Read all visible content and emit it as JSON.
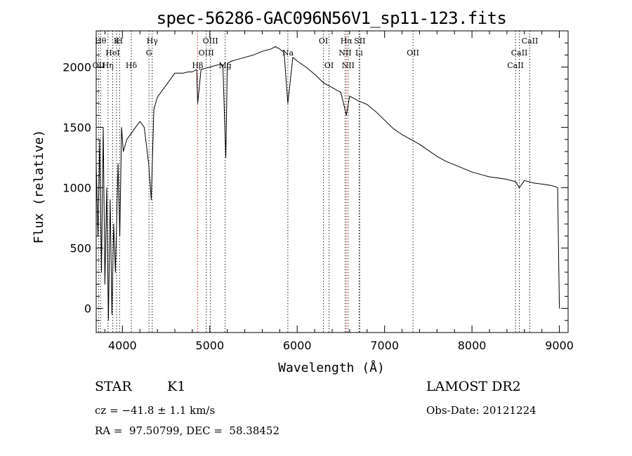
{
  "chart_data": {
    "type": "line",
    "title": "spec-56286-GAC096N56V1_sp11-123.fits",
    "xlabel": "Wavelength (Å)",
    "ylabel": "Flux (relative)",
    "xlim": [
      3700,
      9100
    ],
    "ylim": [
      -200,
      2300
    ],
    "x_ticks": [
      4000,
      5000,
      6000,
      7000,
      8000,
      9000
    ],
    "y_ticks": [
      0,
      500,
      1000,
      1500,
      2000
    ],
    "grid": false,
    "series": [
      {
        "color": "#000000",
        "x": [
          3700,
          3720,
          3740,
          3760,
          3780,
          3800,
          3820,
          3840,
          3860,
          3880,
          3900,
          3920,
          3950,
          3970,
          3990,
          4010,
          4050,
          4100,
          4150,
          4200,
          4250,
          4300,
          4330,
          4360,
          4400,
          4450,
          4500,
          4550,
          4600,
          4650,
          4700,
          4750,
          4800,
          4850,
          4861,
          4900,
          4950,
          5000,
          5050,
          5100,
          5150,
          5170,
          5183,
          5200,
          5250,
          5300,
          5400,
          5500,
          5600,
          5700,
          5750,
          5800,
          5850,
          5893,
          5950,
          6000,
          6100,
          6200,
          6300,
          6400,
          6500,
          6563,
          6600,
          6700,
          6800,
          6900,
          7000,
          7100,
          7200,
          7300,
          7400,
          7500,
          7600,
          7700,
          7800,
          7900,
          8000,
          8100,
          8200,
          8300,
          8400,
          8500,
          8542,
          8600,
          8700,
          8800,
          8900,
          8950,
          8980,
          9000
        ],
        "y": [
          1200,
          600,
          1400,
          300,
          1500,
          200,
          1000,
          -100,
          900,
          -50,
          700,
          300,
          1200,
          600,
          1500,
          1300,
          1400,
          1450,
          1500,
          1550,
          1500,
          1200,
          900,
          1650,
          1750,
          1800,
          1850,
          1900,
          1950,
          1950,
          1950,
          1960,
          1960,
          1980,
          1700,
          1980,
          1990,
          2000,
          2010,
          2020,
          2020,
          1550,
          1250,
          2030,
          2050,
          2060,
          2080,
          2100,
          2130,
          2150,
          2170,
          2150,
          2120,
          1700,
          2080,
          2050,
          2000,
          1940,
          1870,
          1830,
          1790,
          1600,
          1760,
          1720,
          1690,
          1630,
          1560,
          1490,
          1440,
          1400,
          1360,
          1310,
          1260,
          1220,
          1190,
          1160,
          1130,
          1110,
          1090,
          1080,
          1070,
          1050,
          1000,
          1060,
          1040,
          1030,
          1020,
          1010,
          1000,
          0
        ]
      }
    ],
    "lines": [
      {
        "wl": 3727,
        "label": "OII",
        "row": 2,
        "color": "#000000"
      },
      {
        "wl": 3750,
        "label": "Hθ",
        "row": 0,
        "color": "#000000"
      },
      {
        "wl": 3835,
        "label": "Hη",
        "row": 2,
        "color": "#000000"
      },
      {
        "wl": 3889,
        "label": "HeI",
        "row": 1,
        "color": "#000000"
      },
      {
        "wl": 3933,
        "label": "K",
        "row": 0,
        "color": "#000000"
      },
      {
        "wl": 3968,
        "label": "H",
        "row": 0,
        "color": "#000000"
      },
      {
        "wl": 4102,
        "label": "Hδ",
        "row": 2,
        "color": "#000000"
      },
      {
        "wl": 4304,
        "label": "G",
        "row": 1,
        "color": "#000000"
      },
      {
        "wl": 4341,
        "label": "Hγ",
        "row": 0,
        "color": "#000000"
      },
      {
        "wl": 4861,
        "label": "Hβ",
        "row": 2,
        "color": "#cc0000"
      },
      {
        "wl": 4959,
        "label": "OIII",
        "row": 1,
        "color": "#000000"
      },
      {
        "wl": 5007,
        "label": "OIII",
        "row": 0,
        "color": "#000000"
      },
      {
        "wl": 5175,
        "label": "Mg",
        "row": 2,
        "color": "#000000"
      },
      {
        "wl": 5893,
        "label": "Na",
        "row": 1,
        "color": "#000000"
      },
      {
        "wl": 6300,
        "label": "OI",
        "row": 0,
        "color": "#000000"
      },
      {
        "wl": 6364,
        "label": "OI",
        "row": 2,
        "color": "#000000"
      },
      {
        "wl": 6548,
        "label": "NII",
        "row": 1,
        "color": "#000000"
      },
      {
        "wl": 6563,
        "label": "Hα",
        "row": 0,
        "color": "#cc0000"
      },
      {
        "wl": 6583,
        "label": "NII",
        "row": 2,
        "color": "#000000"
      },
      {
        "wl": 6708,
        "label": "Li",
        "row": 1,
        "color": "#000000"
      },
      {
        "wl": 6716,
        "label": "SII",
        "row": 0,
        "color": "#000000"
      },
      {
        "wl": 7325,
        "label": "OII",
        "row": 1,
        "color": "#000000"
      },
      {
        "wl": 8498,
        "label": "CaII",
        "row": 2,
        "color": "#000000"
      },
      {
        "wl": 8542,
        "label": "CaII",
        "row": 1,
        "color": "#000000"
      },
      {
        "wl": 8662,
        "label": "CaII",
        "row": 0,
        "color": "#000000"
      }
    ]
  },
  "info": {
    "object_type": "STAR",
    "subclass": "K1",
    "survey": "LAMOST DR2",
    "cz": "cz = −41.8 ± 1.1 km/s",
    "obs_date": "Obs-Date: 20121224",
    "radec": "RA =  97.50799, DEC =  58.38452"
  }
}
